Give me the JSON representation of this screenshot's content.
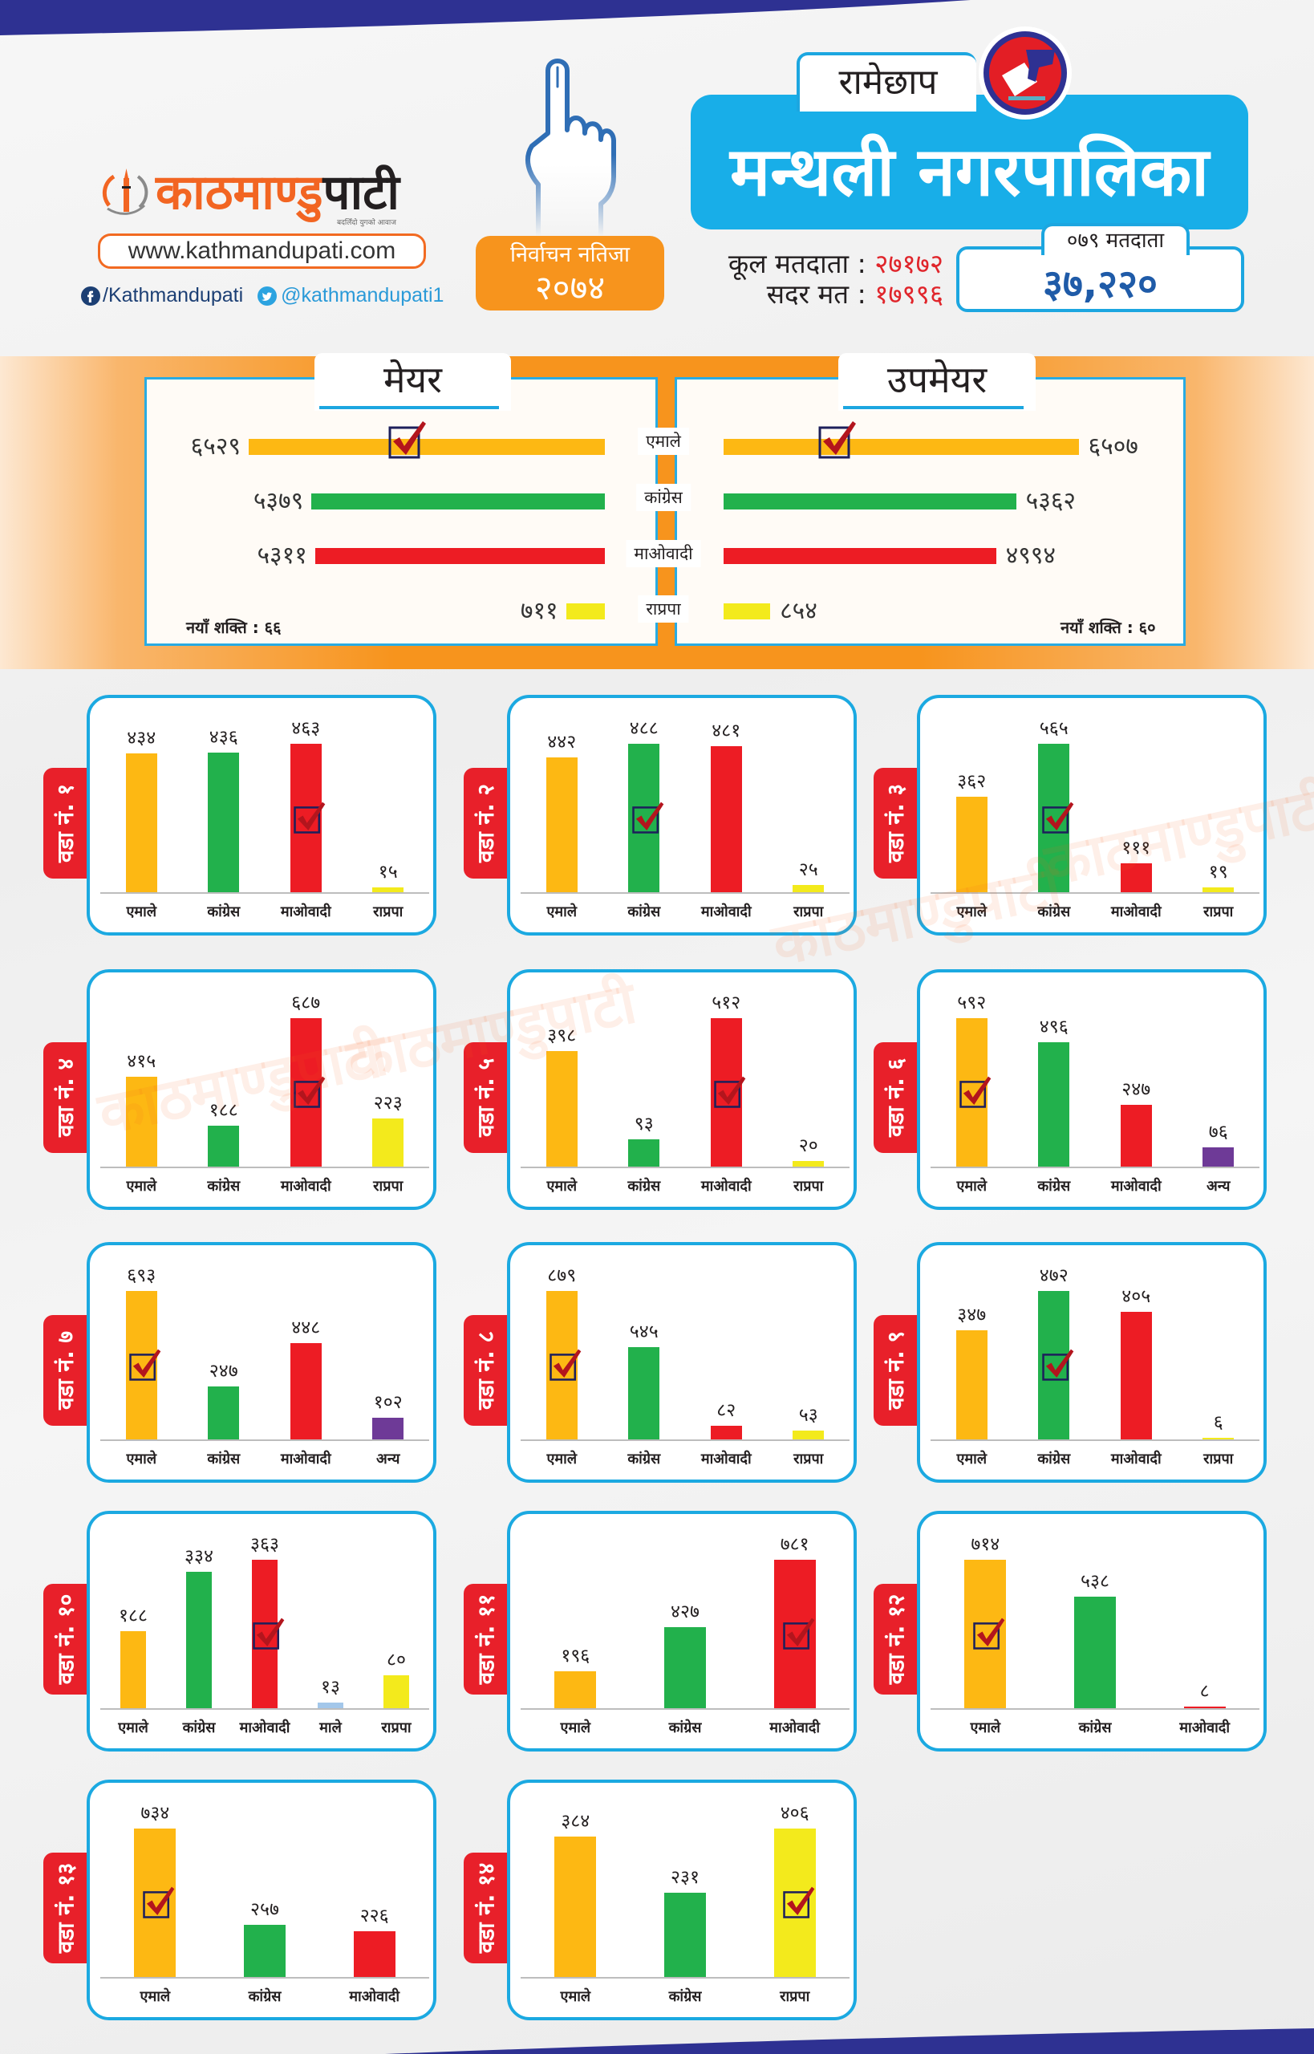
{
  "header": {
    "logo": {
      "name_primary": "काठमाण्डु",
      "name_secondary": "पाटी",
      "tagline": "बदलिँदो युगको आवाज",
      "icon": "globe-tower-logo-icon"
    },
    "website": "www.kathmandupati.com",
    "social": {
      "facebook_icon": "facebook-icon",
      "facebook": "/Kathmandupati",
      "twitter_icon": "twitter-icon",
      "twitter": "@kathmandupati1"
    },
    "hand_icon": "voting-finger-icon",
    "badge": {
      "line1": "निर्वाचन नतिजा",
      "line2": "२०७४"
    },
    "district": "रामेछाप",
    "emblem_icon": "ballot-box-emblem-icon",
    "municipality": "मन्थली नगरपालिका",
    "stats": {
      "separator": ":",
      "total_voters_label": "कूल मतदाता",
      "total_voters": "२७१७२",
      "valid_votes_label": "सदर मत",
      "valid_votes": "१७९९६"
    },
    "voters_079": {
      "label": "०७९ मतदाता",
      "value": "३७,२२०"
    }
  },
  "party_colors": {
    "एमाले": "#FDB813",
    "कांग्रेस": "#22B14C",
    "माओवादी": "#ED1C24",
    "राप्रपा": "#F3EA1C",
    "अन्य": "#6E3A97",
    "माले": "#A3C7EA"
  },
  "theme_colors": {
    "navy": "#2E3192",
    "sky_blue": "#18AEE8",
    "orange": "#F7941D",
    "ward_tab_red": "#E8202A",
    "count_red": "#E0252B",
    "count_blue": "#1F5BA8",
    "tick_red": "#B3151D"
  },
  "winner_icon": "checkbox-tick-icon",
  "watermark": "काठमाण्डुपाटी",
  "chart_data": [
    {
      "type": "bar",
      "orientation": "horizontal",
      "title": "मेयर",
      "categories": [
        "एमाले",
        "कांग्रेस",
        "माओवादी",
        "राप्रपा"
      ],
      "values": [
        6529,
        5379,
        5311,
        711
      ],
      "value_labels": [
        "६५२९",
        "५३७९",
        "५३११",
        "७११"
      ],
      "winner": "एमाले",
      "note": "नयाँ शक्ति : ६६"
    },
    {
      "type": "bar",
      "orientation": "horizontal",
      "title": "उपमेयर",
      "categories": [
        "एमाले",
        "कांग्रेस",
        "माओवादी",
        "राप्रपा"
      ],
      "values": [
        6507,
        5362,
        4994,
        854
      ],
      "value_labels": [
        "६५०७",
        "५३६२",
        "४९९४",
        "८५४"
      ],
      "winner": "एमाले",
      "note": "नयाँ शक्ति : ६०"
    },
    {
      "type": "bar",
      "title": "वडा नं. १",
      "categories": [
        "एमाले",
        "कांग्रेस",
        "माओवादी",
        "राप्रपा"
      ],
      "values": [
        434,
        436,
        463,
        15
      ],
      "value_labels": [
        "४३४",
        "४३६",
        "४६३",
        "१५"
      ],
      "winner": "माओवादी"
    },
    {
      "type": "bar",
      "title": "वडा नं. २",
      "categories": [
        "एमाले",
        "कांग्रेस",
        "माओवादी",
        "राप्रपा"
      ],
      "values": [
        442,
        488,
        481,
        25
      ],
      "value_labels": [
        "४४२",
        "४८८",
        "४८१",
        "२५"
      ],
      "winner": "कांग्रेस"
    },
    {
      "type": "bar",
      "title": "वडा नं. ३",
      "categories": [
        "एमाले",
        "कांग्रेस",
        "माओवादी",
        "राप्रपा"
      ],
      "values": [
        362,
        565,
        111,
        19
      ],
      "value_labels": [
        "३६२",
        "५६५",
        "१११",
        "१९"
      ],
      "winner": "कांग्रेस"
    },
    {
      "type": "bar",
      "title": "वडा नं. ४",
      "categories": [
        "एमाले",
        "कांग्रेस",
        "माओवादी",
        "राप्रपा"
      ],
      "values": [
        415,
        188,
        687,
        223
      ],
      "value_labels": [
        "४१५",
        "१८८",
        "६८७",
        "२२३"
      ],
      "winner": "माओवादी"
    },
    {
      "type": "bar",
      "title": "वडा नं. ५",
      "categories": [
        "एमाले",
        "कांग्रेस",
        "माओवादी",
        "राप्रपा"
      ],
      "values": [
        398,
        93,
        512,
        20
      ],
      "value_labels": [
        "३९८",
        "९३",
        "५१२",
        "२०"
      ],
      "winner": "माओवादी"
    },
    {
      "type": "bar",
      "title": "वडा नं. ६",
      "categories": [
        "एमाले",
        "कांग्रेस",
        "माओवादी",
        "अन्य"
      ],
      "values": [
        592,
        496,
        247,
        76
      ],
      "value_labels": [
        "५९२",
        "४९६",
        "२४७",
        "७६"
      ],
      "winner": "एमाले"
    },
    {
      "type": "bar",
      "title": "वडा नं. ७",
      "categories": [
        "एमाले",
        "कांग्रेस",
        "माओवादी",
        "अन्य"
      ],
      "values": [
        693,
        247,
        448,
        102
      ],
      "value_labels": [
        "६९३",
        "२४७",
        "४४८",
        "१०२"
      ],
      "winner": "एमाले"
    },
    {
      "type": "bar",
      "title": "वडा नं. ८",
      "categories": [
        "एमाले",
        "कांग्रेस",
        "माओवादी",
        "राप्रपा"
      ],
      "values": [
        879,
        545,
        82,
        53
      ],
      "value_labels": [
        "८७९",
        "५४५",
        "८२",
        "५३"
      ],
      "winner": "एमाले"
    },
    {
      "type": "bar",
      "title": "वडा नं. ९",
      "categories": [
        "एमाले",
        "कांग्रेस",
        "माओवादी",
        "राप्रपा"
      ],
      "values": [
        347,
        472,
        405,
        6
      ],
      "value_labels": [
        "३४७",
        "४७२",
        "४०५",
        "६"
      ],
      "winner": "कांग्रेस"
    },
    {
      "type": "bar",
      "title": "वडा नं. १०",
      "categories": [
        "एमाले",
        "कांग्रेस",
        "माओवादी",
        "माले",
        "राप्रपा"
      ],
      "values": [
        188,
        334,
        363,
        13,
        80
      ],
      "value_labels": [
        "१८८",
        "३३४",
        "३६३",
        "१३",
        "८०"
      ],
      "winner": "माओवादी"
    },
    {
      "type": "bar",
      "title": "वडा नं. ११",
      "categories": [
        "एमाले",
        "कांग्रेस",
        "माओवादी"
      ],
      "values": [
        196,
        427,
        781
      ],
      "value_labels": [
        "१९६",
        "४२७",
        "७८१"
      ],
      "winner": "माओवादी"
    },
    {
      "type": "bar",
      "title": "वडा नं. १२",
      "categories": [
        "एमाले",
        "कांग्रेस",
        "माओवादी"
      ],
      "values": [
        714,
        538,
        8
      ],
      "value_labels": [
        "७१४",
        "५३८",
        "८"
      ],
      "winner": "एमाले"
    },
    {
      "type": "bar",
      "title": "वडा नं. १३",
      "categories": [
        "एमाले",
        "कांग्रेस",
        "माओवादी"
      ],
      "values": [
        734,
        257,
        226
      ],
      "value_labels": [
        "७३४",
        "२५७",
        "२२६"
      ],
      "winner": "एमाले"
    },
    {
      "type": "bar",
      "title": "वडा नं. १४",
      "categories": [
        "एमाले",
        "कांग्रेस",
        "राप्रपा"
      ],
      "values": [
        384,
        231,
        406
      ],
      "value_labels": [
        "३८४",
        "२३१",
        "४०६"
      ],
      "winner": "राप्रपा"
    }
  ]
}
